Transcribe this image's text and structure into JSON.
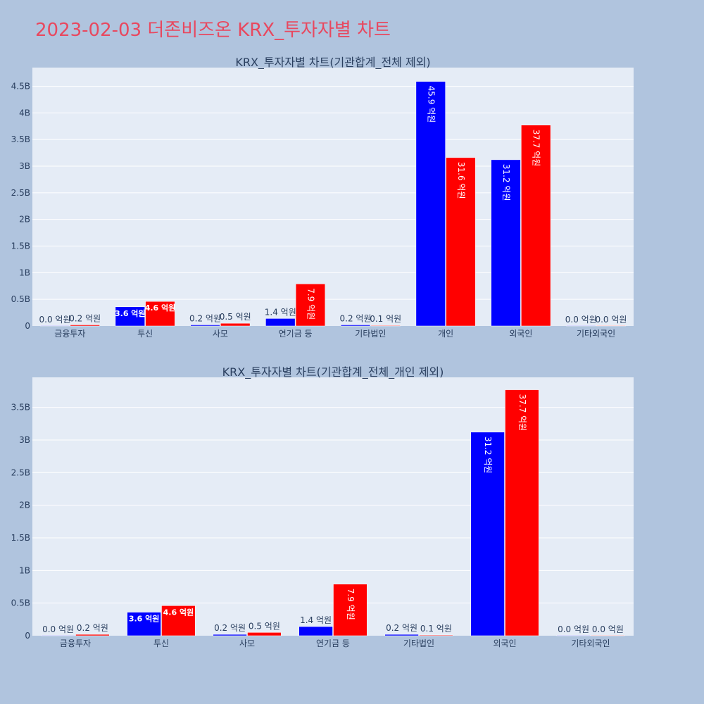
{
  "title": "2023-02-03 더존비즈온 KRX_투자자별 차트",
  "colors": {
    "background": "#b0c4de",
    "plot_bg": "#e5ecf6",
    "title": "#e8485f",
    "buy": "#0000ff",
    "sell": "#ff0000"
  },
  "chart_data": [
    {
      "type": "bar",
      "title": "KRX_투자자별 차트(기관합계_전체 제외)",
      "categories": [
        "금융투자",
        "투신",
        "사모",
        "연기금 등",
        "기타법인",
        "개인",
        "외국인",
        "기타외국인"
      ],
      "series": [
        {
          "color": "#0000ff",
          "values": [
            0.0,
            0.36,
            0.02,
            0.14,
            0.02,
            4.59,
            3.12,
            0.0
          ],
          "labels": [
            "0.0 억원",
            "3.6 억원",
            "0.2 억원",
            "1.4 억원",
            "0.2 억원",
            "45.9 억원",
            "31.2 억원",
            "0.0 억원"
          ]
        },
        {
          "color": "#ff0000",
          "values": [
            0.02,
            0.46,
            0.05,
            0.79,
            0.01,
            3.16,
            3.77,
            0.0
          ],
          "labels": [
            "0.2 억원",
            "4.6 억원",
            "0.5 억원",
            "7.9 억원",
            "0.1 억원",
            "31.6 억원",
            "37.7 억원",
            "0.0 억원"
          ]
        }
      ],
      "ylim": [
        0,
        4.85
      ],
      "yticks": [
        0,
        0.5,
        1,
        1.5,
        2,
        2.5,
        3,
        3.5,
        4,
        4.5
      ],
      "ytick_labels": [
        "0",
        "0.5B",
        "1B",
        "1.5B",
        "2B",
        "2.5B",
        "3B",
        "3.5B",
        "4B",
        "4.5B"
      ],
      "grid": true,
      "legend": "none"
    },
    {
      "type": "bar",
      "title": "KRX_투자자별 차트(기관합계_전체_개인 제외)",
      "categories": [
        "금융투자",
        "투신",
        "사모",
        "연기금 등",
        "기타법인",
        "외국인",
        "기타외국인"
      ],
      "series": [
        {
          "color": "#0000ff",
          "values": [
            0.0,
            0.36,
            0.02,
            0.14,
            0.02,
            3.12,
            0.0
          ],
          "labels": [
            "0.0 억원",
            "3.6 억원",
            "0.2 억원",
            "1.4 억원",
            "0.2 억원",
            "31.2 억원",
            "0.0 억원"
          ]
        },
        {
          "color": "#ff0000",
          "values": [
            0.02,
            0.46,
            0.05,
            0.79,
            0.01,
            3.77,
            0.0
          ],
          "labels": [
            "0.2 억원",
            "4.6 억원",
            "0.5 억원",
            "7.9 억원",
            "0.1 억원",
            "37.7 억원",
            "0.0 억원"
          ]
        }
      ],
      "ylim": [
        0,
        3.96
      ],
      "yticks": [
        0,
        0.5,
        1,
        1.5,
        2,
        2.5,
        3,
        3.5
      ],
      "ytick_labels": [
        "0",
        "0.5B",
        "1B",
        "1.5B",
        "2B",
        "2.5B",
        "3B",
        "3.5B"
      ],
      "grid": true,
      "legend": "none"
    }
  ]
}
